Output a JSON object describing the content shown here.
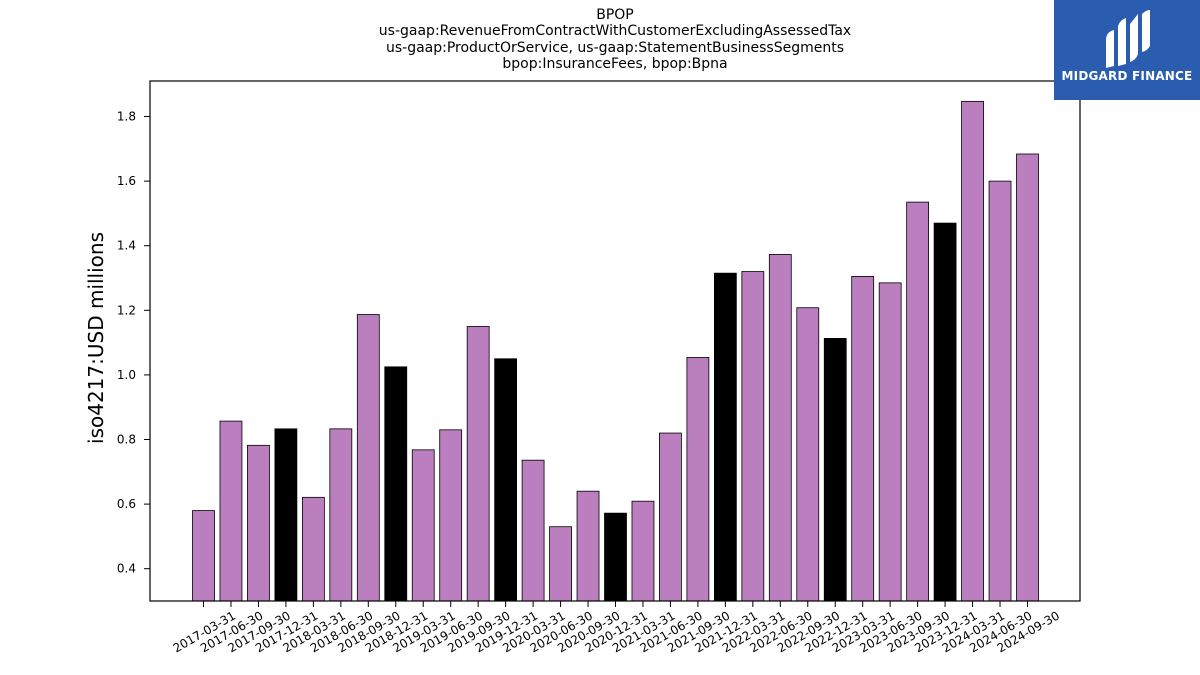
{
  "chart_data": {
    "type": "bar",
    "title_lines": [
      "BPOP",
      "us-gaap:RevenueFromContractWithCustomerExcludingAssessedTax",
      "us-gaap:ProductOrService, us-gaap:StatementBusinessSegments",
      "bpop:InsuranceFees, bpop:Bpna"
    ],
    "xlabel": "",
    "ylabel": "iso4217:USD  millions",
    "ylim": [
      0.3,
      1.91
    ],
    "yticks": [
      "0.4",
      "0.6",
      "0.8",
      "1.0",
      "1.2",
      "1.4",
      "1.6",
      "1.8"
    ],
    "categories": [
      "2017-03-31",
      "2017-06-30",
      "2017-09-30",
      "2017-12-31",
      "2018-03-31",
      "2018-06-30",
      "2018-09-30",
      "2018-12-31",
      "2019-03-31",
      "2019-06-30",
      "2019-09-30",
      "2019-12-31",
      "2020-03-31",
      "2020-06-30",
      "2020-09-30",
      "2020-12-31",
      "2021-03-31",
      "2021-06-30",
      "2021-09-30",
      "2021-12-31",
      "2022-03-31",
      "2022-06-30",
      "2022-09-30",
      "2022-12-31",
      "2023-03-31",
      "2023-06-30",
      "2023-09-30",
      "2023-12-31",
      "2024-03-31",
      "2024-06-30",
      "2024-09-30"
    ],
    "values": [
      0.58,
      0.857,
      0.782,
      0.833,
      0.621,
      0.833,
      1.187,
      1.025,
      0.768,
      0.83,
      1.15,
      1.05,
      0.736,
      0.53,
      0.64,
      0.572,
      0.609,
      0.82,
      1.054,
      1.315,
      1.32,
      1.373,
      1.208,
      1.113,
      1.305,
      1.285,
      1.535,
      1.47,
      1.847,
      1.6,
      1.684
    ],
    "bar_colors": [
      "#bb7fbf",
      "#bb7fbf",
      "#bb7fbf",
      "#000000",
      "#bb7fbf",
      "#bb7fbf",
      "#bb7fbf",
      "#000000",
      "#bb7fbf",
      "#bb7fbf",
      "#bb7fbf",
      "#000000",
      "#bb7fbf",
      "#bb7fbf",
      "#bb7fbf",
      "#000000",
      "#bb7fbf",
      "#bb7fbf",
      "#bb7fbf",
      "#000000",
      "#bb7fbf",
      "#bb7fbf",
      "#bb7fbf",
      "#000000",
      "#bb7fbf",
      "#bb7fbf",
      "#bb7fbf",
      "#000000",
      "#bb7fbf",
      "#bb7fbf",
      "#bb7fbf"
    ],
    "grid": false,
    "legend": "none"
  },
  "logo": {
    "text": "MIDGARD FINANCE",
    "icon": "midgard-logo-icon",
    "color": "#2a5db0"
  }
}
